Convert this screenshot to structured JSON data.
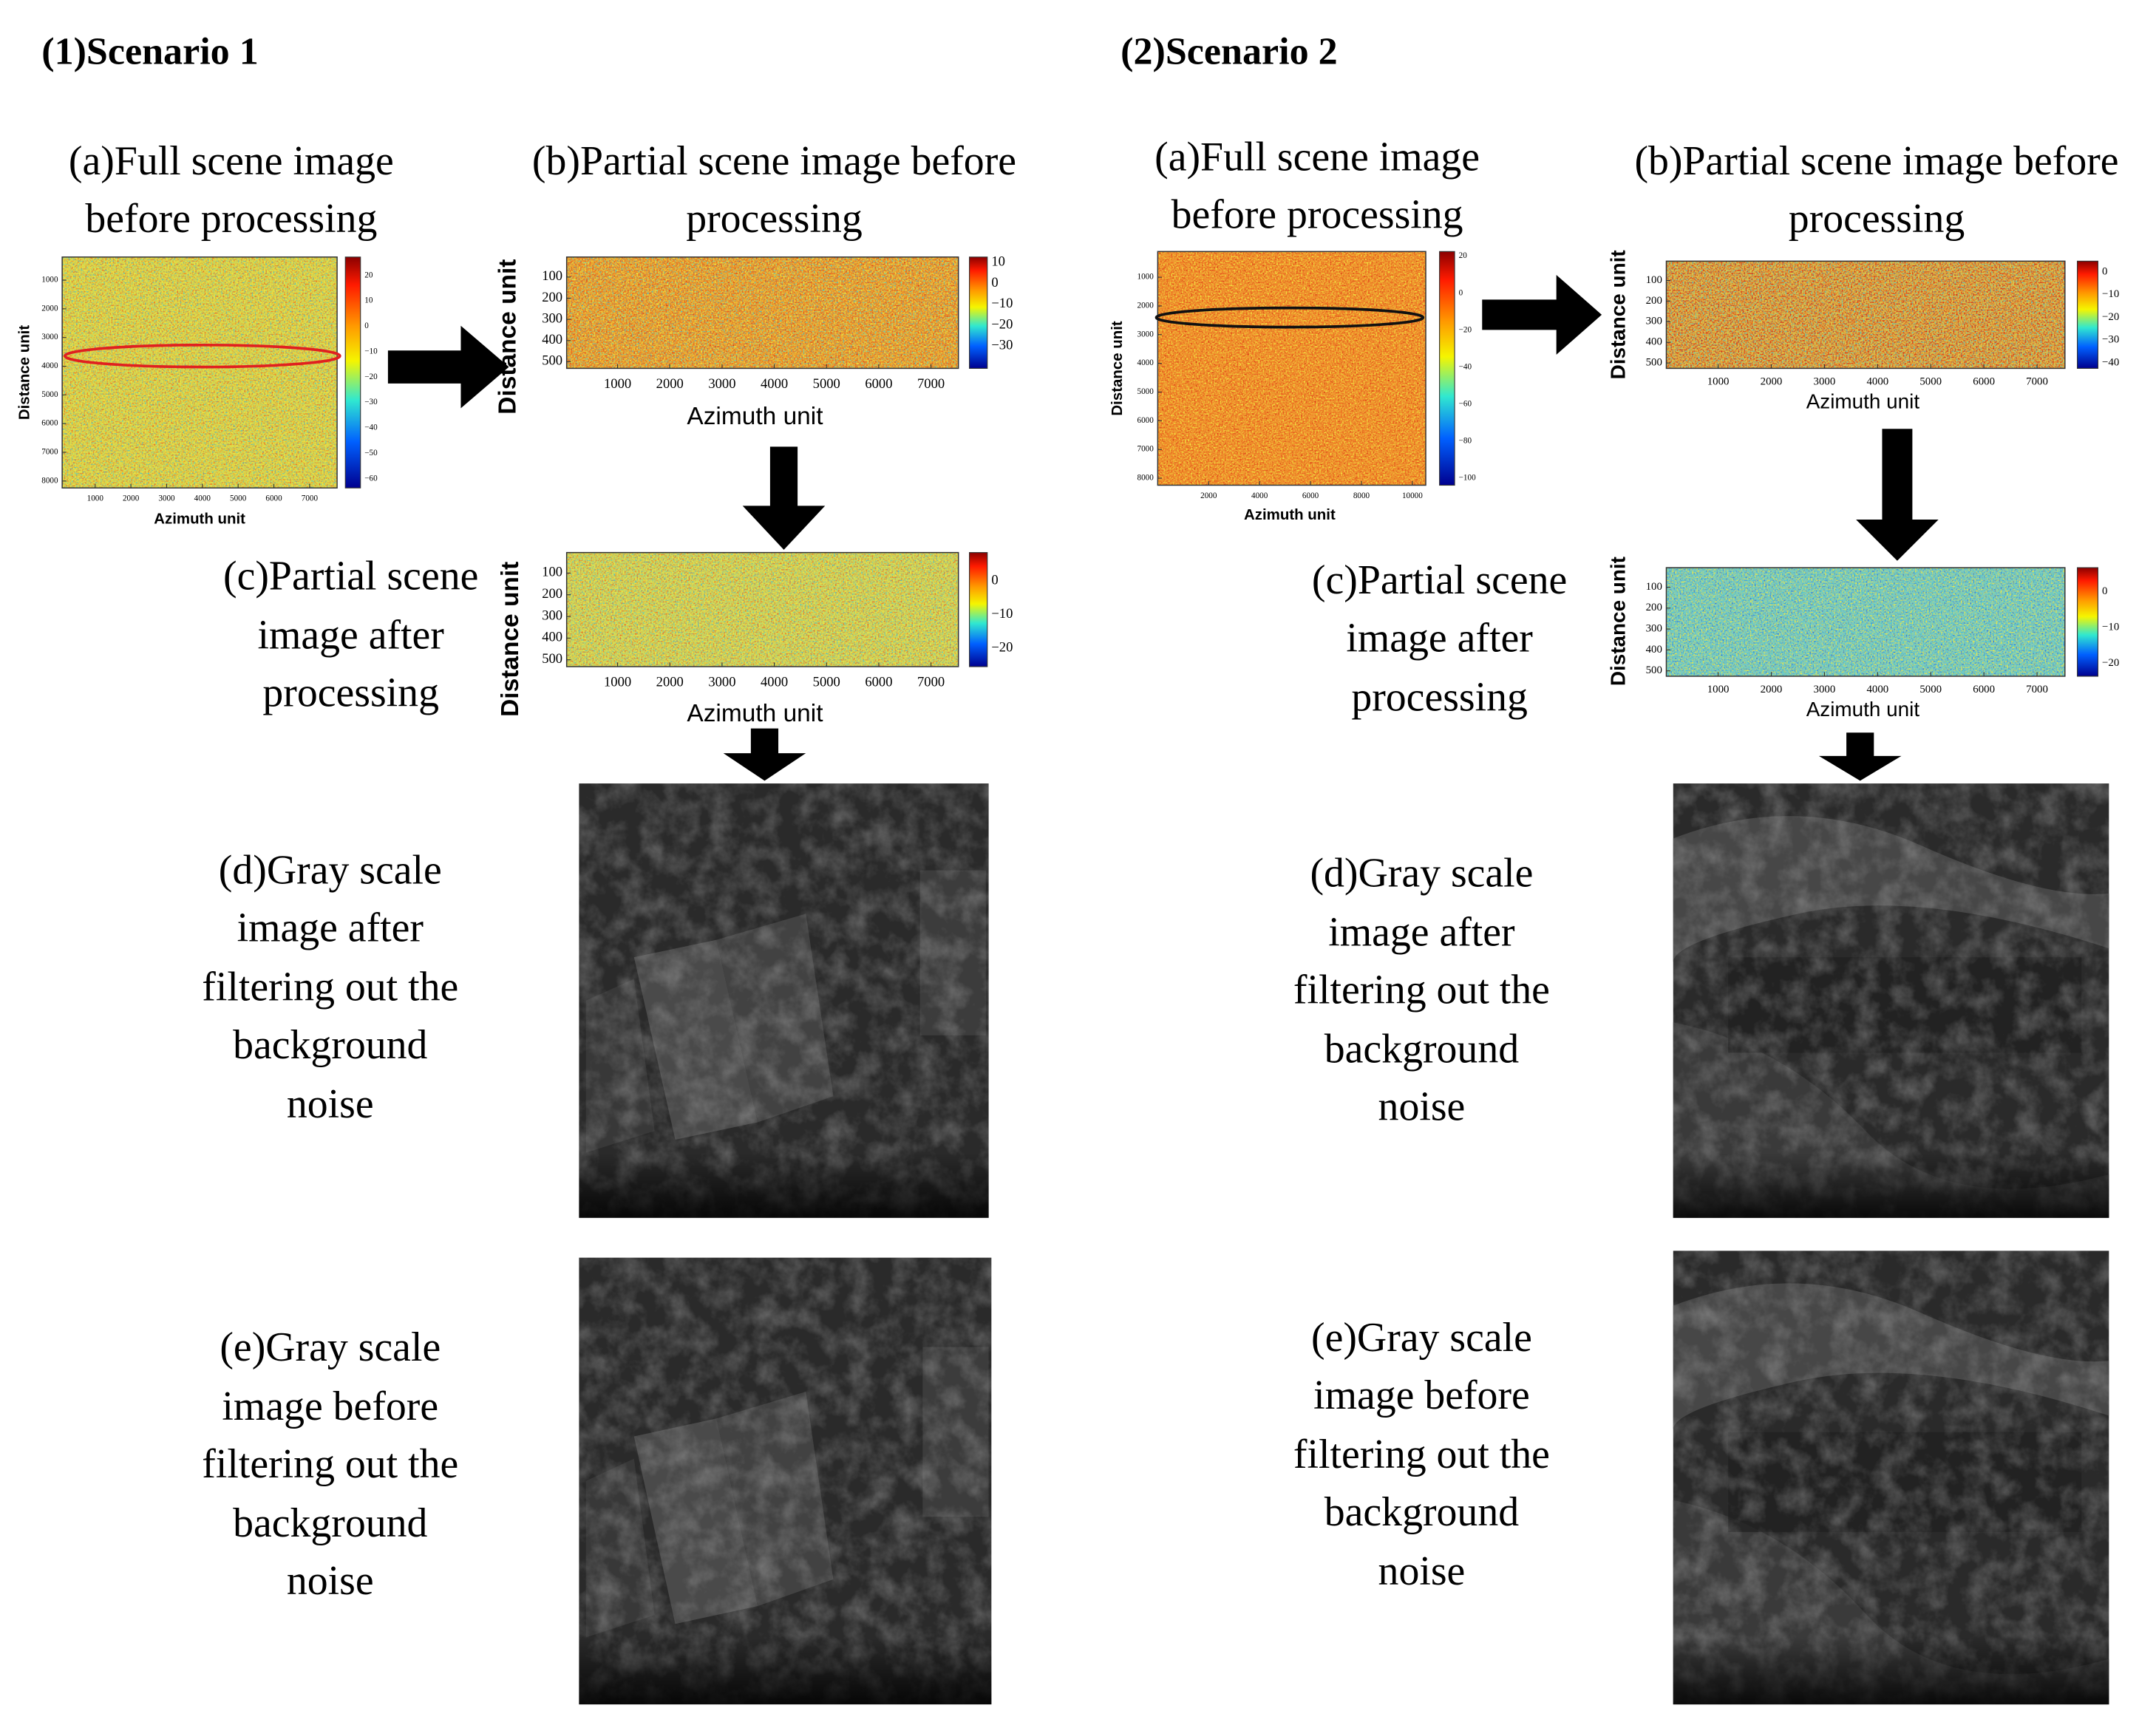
{
  "scenarios": [
    {
      "title": "(1)Scenario 1",
      "full_scene": {
        "caption": [
          "(a)Full scene image",
          "before processing"
        ],
        "x_label": "Azimuth unit",
        "y_label": "Distance unit",
        "x_ticks": [
          "1000",
          "2000",
          "3000",
          "4000",
          "5000",
          "6000",
          "7000"
        ],
        "y_ticks": [
          "1000",
          "2000",
          "3000",
          "4000",
          "5000",
          "6000",
          "7000",
          "8000"
        ],
        "colorbar_ticks": [
          "20",
          "10",
          "0",
          "−10",
          "−20",
          "−30",
          "−40",
          "−50",
          "−60"
        ]
      },
      "partial_before": {
        "caption": [
          "(b)Partial scene image before",
          "processing"
        ],
        "x_label": "Azimuth unit",
        "y_label": "Distance unit",
        "x_ticks": [
          "1000",
          "2000",
          "3000",
          "4000",
          "5000",
          "6000",
          "7000"
        ],
        "y_ticks": [
          "100",
          "200",
          "300",
          "400",
          "500"
        ],
        "colorbar_ticks": [
          "10",
          "0",
          "−10",
          "−20",
          "−30"
        ]
      },
      "partial_after": {
        "caption": [
          "(c)Partial scene",
          "image after",
          "processing"
        ],
        "x_label": "Azimuth unit",
        "y_label": "Distance unit",
        "x_ticks": [
          "1000",
          "2000",
          "3000",
          "4000",
          "5000",
          "6000",
          "7000"
        ],
        "y_ticks": [
          "100",
          "200",
          "300",
          "400",
          "500"
        ],
        "colorbar_ticks": [
          "0",
          "−10",
          "−20"
        ]
      },
      "gray_after": {
        "caption": [
          "(d)Gray scale",
          "image after",
          "filtering out the",
          "background",
          "noise"
        ]
      },
      "gray_before": {
        "caption": [
          "(e)Gray scale",
          "image before",
          "filtering out the",
          "background",
          "noise"
        ]
      }
    },
    {
      "title": "(2)Scenario 2",
      "full_scene": {
        "caption": [
          "(a)Full scene image",
          "before processing"
        ],
        "x_label": "Azimuth unit",
        "y_label": "Distance unit",
        "x_ticks": [
          "2000",
          "4000",
          "6000",
          "8000",
          "10000"
        ],
        "y_ticks": [
          "1000",
          "2000",
          "3000",
          "4000",
          "5000",
          "6000",
          "7000",
          "8000"
        ],
        "colorbar_ticks": [
          "20",
          "0",
          "−20",
          "−40",
          "−60",
          "−80",
          "−100"
        ]
      },
      "partial_before": {
        "caption": [
          "(b)Partial scene image before",
          "processing"
        ],
        "x_label": "Azimuth unit",
        "y_label": "Distance unit",
        "x_ticks": [
          "1000",
          "2000",
          "3000",
          "4000",
          "5000",
          "6000",
          "7000"
        ],
        "y_ticks": [
          "100",
          "200",
          "300",
          "400",
          "500"
        ],
        "colorbar_ticks": [
          "0",
          "−10",
          "−20",
          "−30",
          "−40"
        ]
      },
      "partial_after": {
        "caption": [
          "(c)Partial scene",
          "image after",
          "processing"
        ],
        "x_label": "Azimuth unit",
        "y_label": "Distance unit",
        "x_ticks": [
          "1000",
          "2000",
          "3000",
          "4000",
          "5000",
          "6000",
          "7000"
        ],
        "y_ticks": [
          "100",
          "200",
          "300",
          "400",
          "500"
        ],
        "colorbar_ticks": [
          "0",
          "−10",
          "−20"
        ]
      },
      "gray_after": {
        "caption": [
          "(d)Gray scale",
          "image after",
          "filtering out the",
          "background",
          "noise"
        ]
      },
      "gray_before": {
        "caption": [
          "(e)Gray scale",
          "image before",
          "filtering out the",
          "background",
          "noise"
        ]
      }
    }
  ]
}
